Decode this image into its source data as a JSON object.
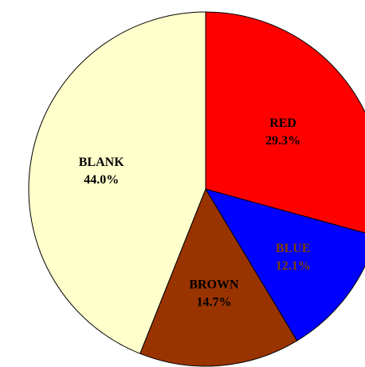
{
  "chart_data": {
    "type": "pie",
    "slices": [
      {
        "label": "RED",
        "value": 29.3,
        "value_label": "29.3%",
        "color": "#ff0000",
        "text_color": "#000000"
      },
      {
        "label": "BLUE",
        "value": 12.1,
        "value_label": "12.1%",
        "color": "#0000ff",
        "text_color": "#804000"
      },
      {
        "label": "BROWN",
        "value": 14.7,
        "value_label": "14.7%",
        "color": "#993300",
        "text_color": "#000000"
      },
      {
        "label": "BLANK",
        "value": 44.0,
        "value_label": "44.0%",
        "color": "#ffffcc",
        "text_color": "#000000"
      }
    ],
    "start": "12 o'clock",
    "direction": "clockwise",
    "legend": "none",
    "outline_color": "#000000"
  }
}
